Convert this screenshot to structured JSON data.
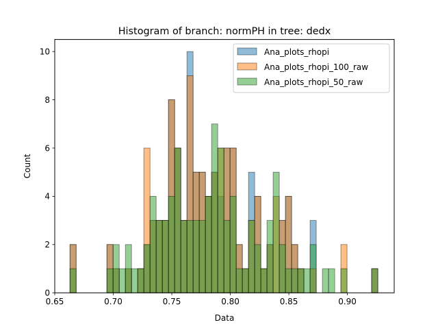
{
  "chart_data": {
    "type": "histogram",
    "title": "Histogram of branch: normPH in tree: dedx",
    "xlabel": "Data",
    "ylabel": "Count",
    "xlim": [
      0.65,
      0.94
    ],
    "ylim": [
      0,
      10.5
    ],
    "x_ticks": [
      0.65,
      0.7,
      0.75,
      0.8,
      0.85,
      0.9
    ],
    "x_tick_labels": [
      "0.65",
      "0.70",
      "0.75",
      "0.80",
      "0.85",
      "0.90"
    ],
    "y_ticks": [
      0,
      2,
      4,
      6,
      8,
      10
    ],
    "y_tick_labels": [
      "0",
      "2",
      "4",
      "6",
      "8",
      "10"
    ],
    "grid": false,
    "legend_position": "top-right",
    "bins": {
      "start": 0.663,
      "end": 0.926,
      "count": 50
    },
    "series": [
      {
        "name": "Ana_plots_rhopi",
        "color": "#1f77b4",
        "alpha": 0.5,
        "counts": [
          2,
          0,
          0,
          0,
          0,
          0,
          2,
          1,
          0,
          1,
          0,
          1,
          2,
          3,
          3,
          3,
          8,
          6,
          3,
          10,
          5,
          5,
          4,
          5,
          4,
          6,
          6,
          2,
          1,
          5,
          4,
          1,
          2,
          0,
          3,
          4,
          2,
          1,
          0,
          3,
          0,
          0,
          0,
          0,
          0,
          0,
          0,
          0,
          0,
          1
        ]
      },
      {
        "name": "Ana_plots_rhopi_100_raw",
        "color": "#ff7f0e",
        "alpha": 0.5,
        "counts": [
          2,
          0,
          0,
          0,
          0,
          0,
          2,
          1,
          0,
          1,
          0,
          1,
          6,
          3,
          3,
          3,
          8,
          6,
          3,
          9,
          5,
          5,
          4,
          5,
          6,
          6,
          6,
          2,
          1,
          3,
          4,
          1,
          2,
          4,
          3,
          4,
          2,
          1,
          0,
          1,
          0,
          0,
          0,
          0,
          2,
          0,
          0,
          0,
          0,
          1
        ]
      },
      {
        "name": "Ana_plots_rhopi_50_raw",
        "color": "#2ca02c",
        "alpha": 0.5,
        "counts": [
          1,
          0,
          0,
          0,
          0,
          0,
          1,
          2,
          1,
          2,
          1,
          1,
          2,
          4,
          3,
          3,
          4,
          6,
          3,
          3,
          3,
          3,
          4,
          7,
          6,
          3,
          4,
          1,
          1,
          3,
          2,
          1,
          3,
          5,
          2,
          1,
          1,
          1,
          1,
          2,
          0,
          1,
          1,
          0,
          1,
          0,
          0,
          0,
          0,
          1
        ]
      }
    ]
  }
}
